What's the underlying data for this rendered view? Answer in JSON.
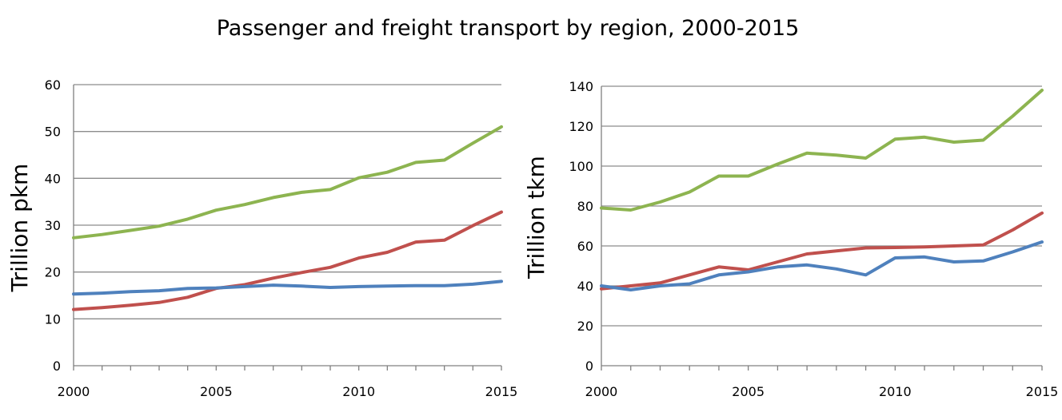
{
  "title": "Passenger and freight transport by region, 2000-2015",
  "colors": {
    "green": "#8db450",
    "red": "#c0504d",
    "blue": "#4f81bd",
    "grid": "#8c8c8c",
    "axis": "#808080"
  },
  "chart_data": [
    {
      "type": "line",
      "ylabel": "Trillion pkm",
      "ylim": [
        0,
        60
      ],
      "yticks": [
        0,
        10,
        20,
        30,
        40,
        50,
        60
      ],
      "xlim": [
        2000,
        2015
      ],
      "xtick_labels": [
        "2000",
        "2005",
        "2010",
        "2015"
      ],
      "grid": true,
      "x": [
        2000,
        2001,
        2002,
        2003,
        2004,
        2005,
        2006,
        2007,
        2008,
        2009,
        2010,
        2011,
        2012,
        2013,
        2014,
        2015
      ],
      "series": [
        {
          "color": "green",
          "values": [
            27.3,
            28.0,
            28.9,
            29.8,
            31.3,
            33.2,
            34.4,
            35.9,
            37.0,
            37.6,
            40.1,
            41.3,
            43.4,
            43.9,
            47.5,
            51.0
          ]
        },
        {
          "color": "red",
          "values": [
            12.0,
            12.4,
            12.9,
            13.5,
            14.6,
            16.5,
            17.3,
            18.7,
            19.9,
            21.0,
            23.0,
            24.2,
            26.4,
            26.8,
            29.9,
            32.8
          ]
        },
        {
          "color": "blue",
          "values": [
            15.3,
            15.5,
            15.8,
            16.0,
            16.5,
            16.6,
            16.9,
            17.2,
            17.0,
            16.7,
            16.9,
            17.0,
            17.1,
            17.1,
            17.4,
            18.0
          ]
        }
      ]
    },
    {
      "type": "line",
      "ylabel": "Trillion tkm",
      "ylim": [
        0,
        140
      ],
      "yticks": [
        0,
        20,
        40,
        60,
        80,
        100,
        120,
        140
      ],
      "xlim": [
        2000,
        2015
      ],
      "xtick_labels": [
        "2000",
        "2005",
        "2010",
        "2015"
      ],
      "grid": true,
      "x": [
        2000,
        2001,
        2002,
        2003,
        2004,
        2005,
        2006,
        2007,
        2008,
        2009,
        2010,
        2011,
        2012,
        2013,
        2014,
        2015
      ],
      "series": [
        {
          "color": "green",
          "values": [
            79,
            78,
            82,
            87,
            95,
            95,
            101,
            106.5,
            105.5,
            104,
            113.5,
            114.5,
            112,
            113,
            125,
            138
          ]
        },
        {
          "color": "red",
          "values": [
            38.5,
            40,
            41.5,
            45.5,
            49.5,
            48,
            52,
            56,
            57.5,
            59,
            59.2,
            59.5,
            60,
            60.5,
            68,
            76.5
          ]
        },
        {
          "color": "blue",
          "values": [
            40,
            38,
            40,
            41,
            45.5,
            47,
            49.5,
            50.5,
            48.5,
            45.5,
            54,
            54.5,
            52,
            52.5,
            57,
            62
          ]
        }
      ]
    }
  ]
}
